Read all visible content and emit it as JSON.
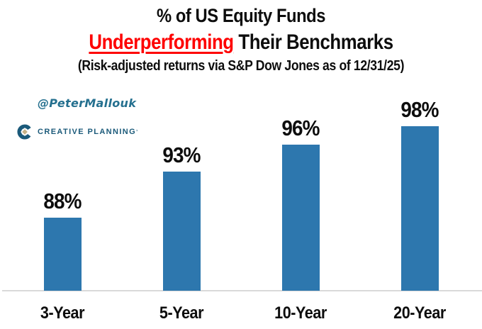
{
  "title": {
    "line1": "% of US Equity Funds",
    "line2_highlight": "Underperforming",
    "line2_rest": " Their Benchmarks",
    "subtitle": "(Risk-adjusted returns via S&P Dow Jones as of 12/31/25)"
  },
  "attribution": {
    "handle": "@PeterMallouk",
    "logo_text": "CREATIVE PLANNING",
    "logo_tm": "’"
  },
  "colors": {
    "bar_blue": "#2d77ae",
    "highlight_red": "#fe0000",
    "text_black": "#0d0d0d",
    "baseline_gray": "#d9d9d9",
    "logo_teal": "#1b5a7a",
    "logo_gold": "#c7b286",
    "handle_blue": "#25708f"
  },
  "chart_data": {
    "type": "bar",
    "title": "% of US Equity Funds Underperforming Their Benchmarks",
    "subtitle": "(Risk-adjusted returns via S&P Dow Jones as of 12/31/25)",
    "categories": [
      "3-Year",
      "5-Year",
      "10-Year",
      "20-Year"
    ],
    "values": [
      88,
      93,
      96,
      98
    ],
    "data_labels": [
      "88%",
      "93%",
      "96%",
      "98%"
    ],
    "xlabel": "",
    "ylabel": "",
    "ylim": [
      80,
      100
    ],
    "grid": false,
    "legend": false,
    "y_axis_hidden": true,
    "bar_color": "#2d77ae"
  }
}
